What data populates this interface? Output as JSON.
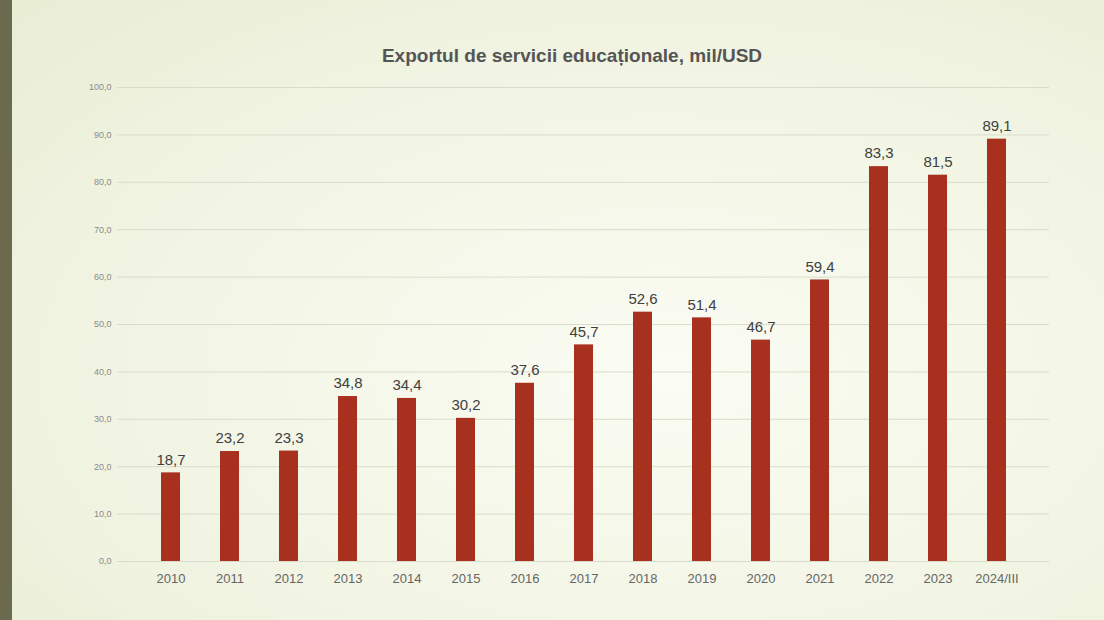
{
  "chart_data": {
    "type": "bar",
    "title": "Exportul de servicii educaționale, mil/USD",
    "categories": [
      "2010",
      "2011",
      "2012",
      "2013",
      "2014",
      "2015",
      "2016",
      "2017",
      "2018",
      "2019",
      "2020",
      "2021",
      "2022",
      "2023",
      "2024/III"
    ],
    "values": [
      18.7,
      23.2,
      23.3,
      34.8,
      34.4,
      30.2,
      37.6,
      45.7,
      52.6,
      51.4,
      46.7,
      59.4,
      83.3,
      81.5,
      89.1
    ],
    "value_labels": [
      "18,7",
      "23,2",
      "23,3",
      "34,8",
      "34,4",
      "30,2",
      "37,6",
      "45,7",
      "52,6",
      "51,4",
      "46,7",
      "59,4",
      "83,3",
      "81,5",
      "89,1"
    ],
    "color": "#a8301f",
    "ylim": [
      0,
      100
    ],
    "yticks": [
      {
        "value": 0,
        "label": "0,0"
      },
      {
        "value": 10,
        "label": "10,0"
      },
      {
        "value": 20,
        "label": "20,0"
      },
      {
        "value": 30,
        "label": "30,0"
      },
      {
        "value": 40,
        "label": "40,0"
      },
      {
        "value": 50,
        "label": "50,0"
      },
      {
        "value": 60,
        "label": "60,0"
      },
      {
        "value": 70,
        "label": "70,0"
      },
      {
        "value": 80,
        "label": "80,0"
      },
      {
        "value": 90,
        "label": "90,0"
      },
      {
        "value": 100,
        "label": "100,0"
      }
    ],
    "grid": true,
    "data_labels": true
  }
}
